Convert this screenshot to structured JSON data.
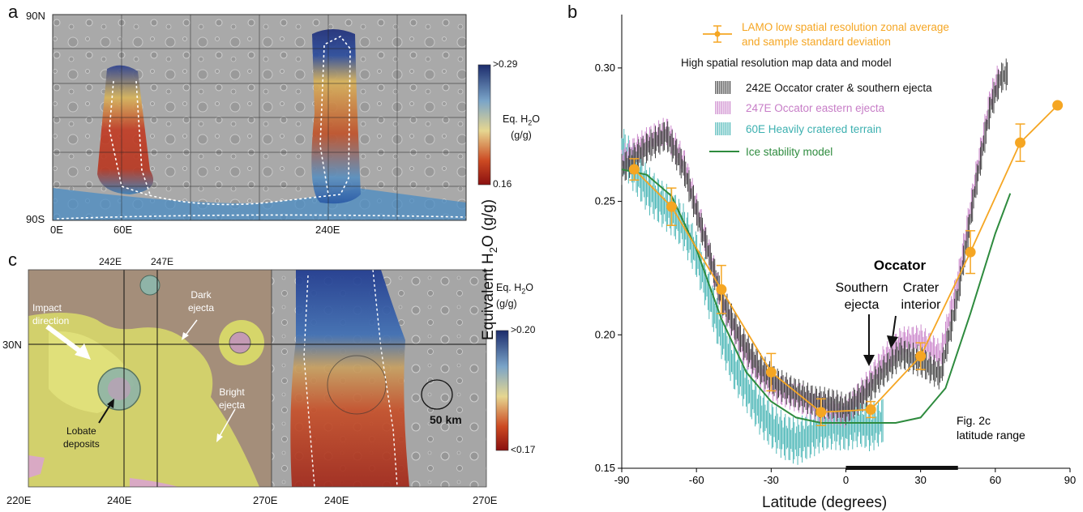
{
  "panels": {
    "a": "a",
    "b": "b",
    "c": "c"
  },
  "panel_a": {
    "lat_labels": [
      "90N",
      "90S"
    ],
    "lon_labels": [
      "0E",
      "60E",
      "240E"
    ],
    "colorbar": {
      "max": ">0.29",
      "min": "0.16",
      "title_line1": "Eq. H",
      "sub": "2",
      "title_line1_end": "O",
      "title_line2": "(g/g)"
    }
  },
  "panel_c": {
    "top_lon_labels": [
      "242E",
      "247E"
    ],
    "lat_label": "30N",
    "left_lon_labels": [
      "220E",
      "240E",
      "270E"
    ],
    "right_lon_labels": [
      "240E",
      "270E"
    ],
    "annotations": {
      "impact_line1": "Impact",
      "impact_line2": "direction",
      "dark_line1": "Dark",
      "dark_line2": "ejecta",
      "bright_line1": "Bright",
      "bright_line2": "ejecta",
      "lobate_line1": "Lobate",
      "lobate_line2": "deposits",
      "scale": "50 km"
    },
    "colorbar": {
      "max": ">0.20",
      "min": "<0.17",
      "title_line1": "Eq. H",
      "sub": "2",
      "title_line1_end": "O",
      "title_line2": "(g/g)"
    }
  },
  "chart_data": {
    "type": "line",
    "xlabel": "Latitude (degrees)",
    "ylabel_pre": "Equivalent H",
    "ylabel_sub": "2",
    "ylabel_post": "O (g/g)",
    "xlim": [
      -90,
      90
    ],
    "ylim": [
      0.15,
      0.32
    ],
    "x_ticks": [
      -90,
      -60,
      -30,
      0,
      30,
      60,
      90
    ],
    "y_ticks": [
      0.15,
      0.2,
      0.25,
      0.3
    ],
    "legend": {
      "lamo_line1": "LAMO low spatial resolution zonal average",
      "lamo_line2": "and sample standard deviation",
      "header": "High spatial resolution map data and model",
      "s242": "242E Occator crater & southern ejecta",
      "s247": "247E Occator eastern ejecta",
      "s60": "60E Heavily cratered terrain",
      "model": "Ice stability model"
    },
    "annotations": {
      "occator": "Occator",
      "southern_line1": "Southern",
      "southern_line2": "ejecta",
      "crater_line1": "Crater",
      "crater_line2": "interior",
      "fig_line1": "Fig. 2c",
      "fig_line2": "latitude range"
    },
    "fig_range": [
      0,
      45
    ],
    "colors": {
      "lamo": "#f5a623",
      "s242": "#333333",
      "s247": "#c77dc7",
      "s60": "#3cb0b0",
      "model": "#2e8b3e"
    },
    "series": [
      {
        "name": "LAMO low spatial resolution zonal average and sample standard deviation",
        "x": [
          -85,
          -70,
          -50,
          -30,
          -10,
          10,
          30,
          50,
          70,
          85
        ],
        "y": [
          0.262,
          0.248,
          0.217,
          0.186,
          0.171,
          0.172,
          0.192,
          0.231,
          0.272,
          0.286
        ],
        "err": [
          0.004,
          0.007,
          0.009,
          0.007,
          0.005,
          0.003,
          0.005,
          0.008,
          0.007,
          0.0
        ]
      },
      {
        "name": "Ice stability model",
        "x": [
          -90,
          -80,
          -70,
          -60,
          -50,
          -40,
          -30,
          -20,
          -10,
          0,
          10,
          20,
          30,
          40,
          50,
          60,
          66
        ],
        "y": [
          0.262,
          0.26,
          0.252,
          0.232,
          0.206,
          0.186,
          0.175,
          0.169,
          0.167,
          0.167,
          0.167,
          0.167,
          0.169,
          0.18,
          0.208,
          0.238,
          0.253
        ]
      },
      {
        "name": "242E Occator crater & southern ejecta",
        "x": [
          -90,
          -80,
          -72,
          -65,
          -58,
          -50,
          -42,
          -35,
          -28,
          -20,
          -12,
          -5,
          0,
          8,
          15,
          22,
          30,
          38,
          45,
          52,
          58,
          62,
          65
        ],
        "y": [
          0.262,
          0.27,
          0.275,
          0.262,
          0.24,
          0.214,
          0.198,
          0.188,
          0.182,
          0.178,
          0.175,
          0.174,
          0.172,
          0.178,
          0.186,
          0.193,
          0.19,
          0.185,
          0.215,
          0.255,
          0.285,
          0.296,
          0.298
        ]
      },
      {
        "name": "247E Occator eastern ejecta",
        "x": [
          -90,
          -80,
          -72,
          -65,
          -58,
          -50,
          -42,
          -35,
          -28,
          -20,
          -12,
          -5,
          0,
          8,
          15,
          22,
          30,
          38,
          45,
          52,
          58,
          62
        ],
        "y": [
          0.265,
          0.272,
          0.276,
          0.264,
          0.241,
          0.213,
          0.196,
          0.186,
          0.18,
          0.177,
          0.173,
          0.172,
          0.171,
          0.18,
          0.19,
          0.197,
          0.198,
          0.192,
          0.22,
          0.258,
          0.288,
          0.298
        ]
      },
      {
        "name": "60E Heavily cratered terrain",
        "x": [
          -90,
          -85,
          -80,
          -75,
          -70,
          -65,
          -60,
          -55,
          -50,
          -45,
          -40,
          -35,
          -30,
          -25,
          -20,
          -15,
          -10,
          -5,
          0,
          5,
          10,
          15
        ],
        "y": [
          0.27,
          0.262,
          0.255,
          0.25,
          0.246,
          0.24,
          0.23,
          0.215,
          0.2,
          0.188,
          0.18,
          0.172,
          0.166,
          0.162,
          0.16,
          0.162,
          0.165,
          0.166,
          0.165,
          0.167,
          0.165,
          0.168
        ]
      }
    ]
  }
}
